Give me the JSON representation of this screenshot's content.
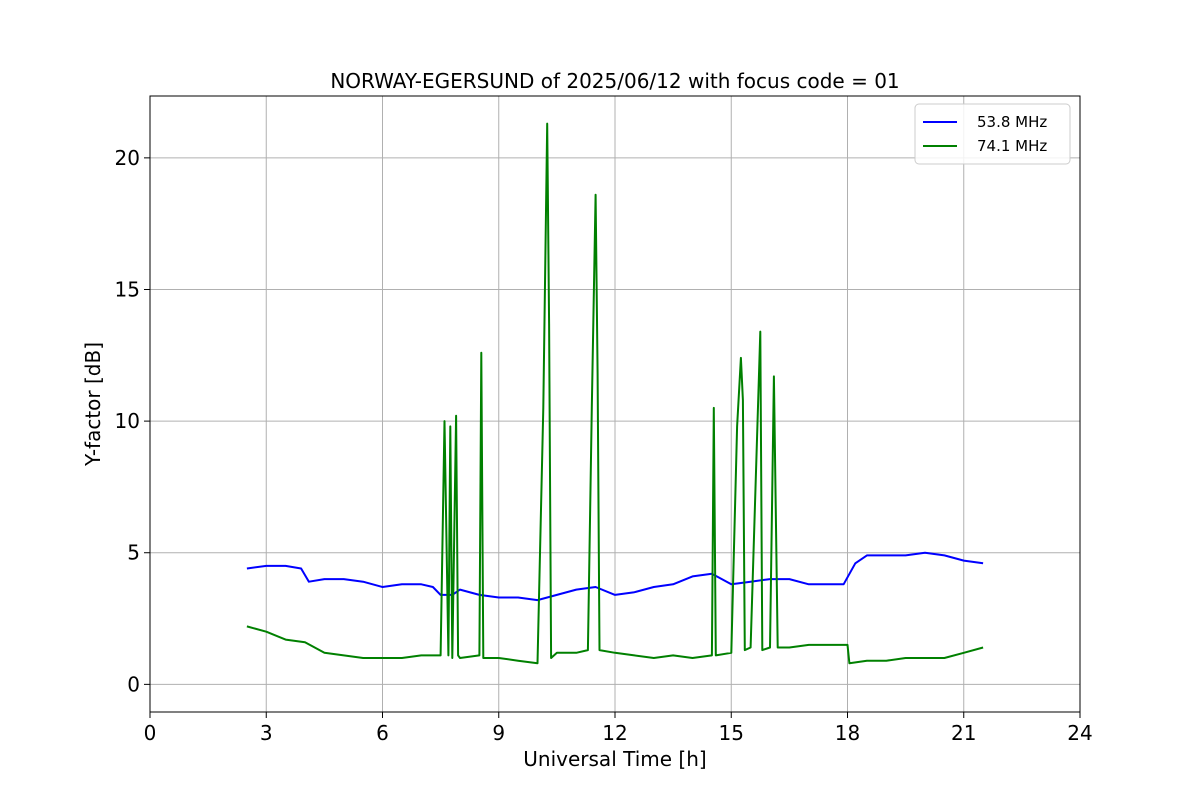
{
  "chart_data": {
    "type": "line",
    "title": "NORWAY-EGERSUND of 2025/06/12 with focus code = 01",
    "xlabel": "Universal Time [h]",
    "ylabel": "Y-factor [dB]",
    "xlim": [
      0,
      24
    ],
    "ylim": [
      -1.05,
      22.35
    ],
    "xticks": [
      0,
      3,
      6,
      9,
      12,
      15,
      18,
      21,
      24
    ],
    "yticks": [
      0,
      5,
      10,
      15,
      20
    ],
    "grid": true,
    "legend_position": "top-right",
    "series": [
      {
        "name": "53.8 MHz",
        "color": "#0000ff",
        "x": [
          2.5,
          3.0,
          3.5,
          3.9,
          4.1,
          4.5,
          5.0,
          5.5,
          6.0,
          6.5,
          7.0,
          7.3,
          7.5,
          7.8,
          8.0,
          8.5,
          9.0,
          9.5,
          10.0,
          10.5,
          11.0,
          11.5,
          12.0,
          12.5,
          13.0,
          13.5,
          14.0,
          14.5,
          15.0,
          15.5,
          16.0,
          16.5,
          17.0,
          17.5,
          17.9,
          18.2,
          18.5,
          19.0,
          19.5,
          20.0,
          20.5,
          21.0,
          21.5
        ],
        "y": [
          4.4,
          4.5,
          4.5,
          4.4,
          3.9,
          4.0,
          4.0,
          3.9,
          3.7,
          3.8,
          3.8,
          3.7,
          3.4,
          3.4,
          3.6,
          3.4,
          3.3,
          3.3,
          3.2,
          3.4,
          3.6,
          3.7,
          3.4,
          3.5,
          3.7,
          3.8,
          4.1,
          4.2,
          3.8,
          3.9,
          4.0,
          4.0,
          3.8,
          3.8,
          3.8,
          4.6,
          4.9,
          4.9,
          4.9,
          5.0,
          4.9,
          4.7,
          4.6
        ]
      },
      {
        "name": "74.1 MHz",
        "color": "#008000",
        "x": [
          2.5,
          3.0,
          3.5,
          4.0,
          4.5,
          5.0,
          5.5,
          6.0,
          6.5,
          7.0,
          7.5,
          7.6,
          7.7,
          7.75,
          7.8,
          7.9,
          7.95,
          8.0,
          8.5,
          8.55,
          8.6,
          9.0,
          9.5,
          10.0,
          10.15,
          10.25,
          10.3,
          10.35,
          10.5,
          11.0,
          11.3,
          11.4,
          11.5,
          11.55,
          11.6,
          12.0,
          12.5,
          13.0,
          13.5,
          14.0,
          14.5,
          14.55,
          14.6,
          15.0,
          15.15,
          15.25,
          15.3,
          15.35,
          15.5,
          15.75,
          15.8,
          16.0,
          16.1,
          16.2,
          16.5,
          17.0,
          17.5,
          18.0,
          18.05,
          18.5,
          19.0,
          19.5,
          20.0,
          20.5,
          21.0,
          21.5
        ],
        "y": [
          2.2,
          2.0,
          1.7,
          1.6,
          1.2,
          1.1,
          1.0,
          1.0,
          1.0,
          1.1,
          1.1,
          10.0,
          1.1,
          9.8,
          1.0,
          10.2,
          1.1,
          1.0,
          1.1,
          12.6,
          1.0,
          1.0,
          0.9,
          0.8,
          10.5,
          21.3,
          13.7,
          1.0,
          1.2,
          1.2,
          1.3,
          10.5,
          18.6,
          11.8,
          1.3,
          1.2,
          1.1,
          1.0,
          1.1,
          1.0,
          1.1,
          10.5,
          1.1,
          1.2,
          9.8,
          12.4,
          10.8,
          1.3,
          1.4,
          13.4,
          1.3,
          1.4,
          11.7,
          1.4,
          1.4,
          1.5,
          1.5,
          1.5,
          0.8,
          0.9,
          0.9,
          1.0,
          1.0,
          1.0,
          1.2,
          1.4
        ]
      }
    ]
  }
}
